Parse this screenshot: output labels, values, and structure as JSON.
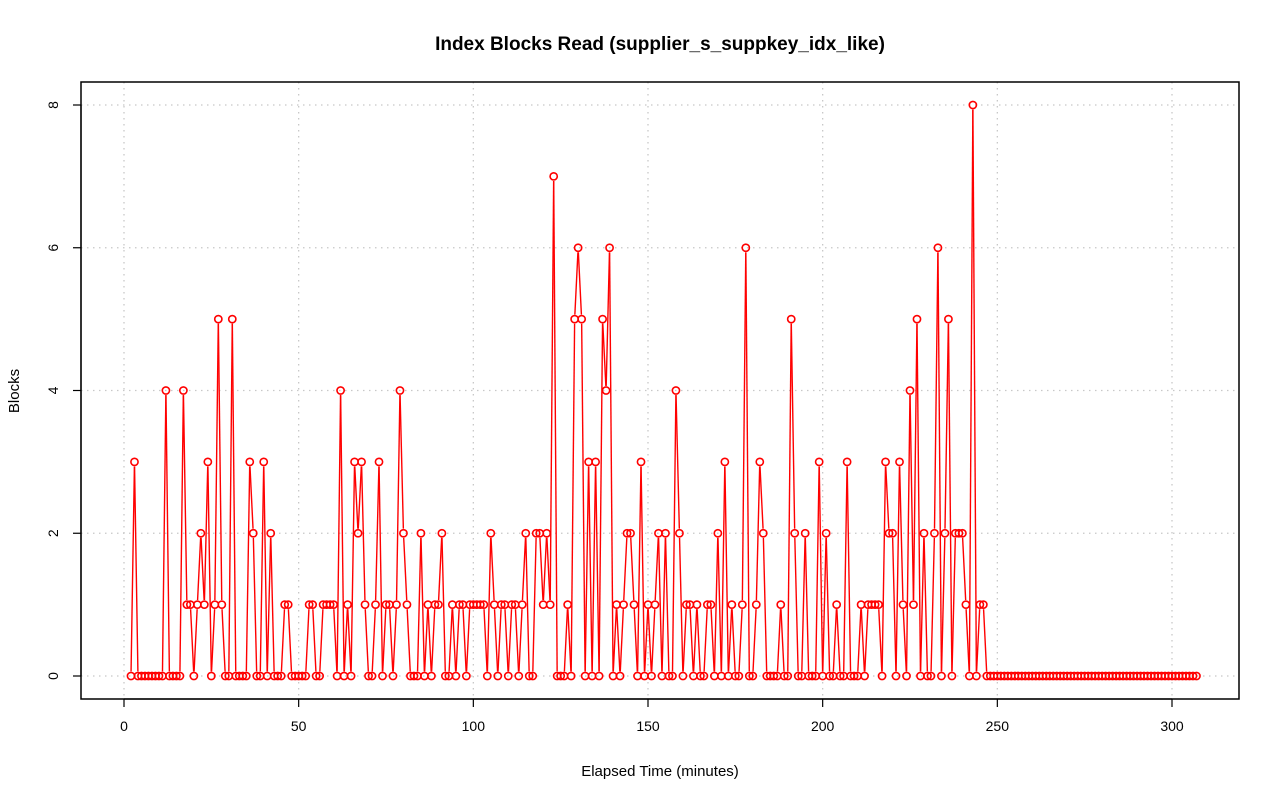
{
  "chart_data": {
    "type": "line",
    "title": "Index Blocks Read (supplier_s_suppkey_idx_like)",
    "xlabel": "Elapsed Time (minutes)",
    "ylabel": "Blocks",
    "xlim": [
      0,
      307
    ],
    "ylim": [
      0,
      8
    ],
    "xticks": [
      0,
      50,
      100,
      150,
      200,
      250,
      300
    ],
    "yticks": [
      0,
      2,
      4,
      6,
      8
    ],
    "grid": true,
    "series_color": "#ff0000",
    "series": [
      {
        "x_start": 2,
        "x_step": 1,
        "values": [
          0,
          3,
          0,
          0,
          0,
          0,
          0,
          0,
          0,
          0,
          4,
          0,
          0,
          0,
          0,
          4,
          1,
          1,
          0,
          1,
          2,
          1,
          3,
          0,
          1,
          5,
          1,
          0,
          0,
          5,
          0,
          0,
          0,
          0,
          3,
          2,
          0,
          0,
          3,
          0,
          2,
          0,
          0,
          0,
          1,
          1,
          0,
          0,
          0,
          0,
          0,
          1,
          1,
          0,
          0,
          1,
          1,
          1,
          1,
          0,
          4,
          0,
          1,
          0,
          3,
          2,
          3,
          1,
          0,
          0,
          1,
          3,
          0,
          1,
          1,
          0,
          1,
          4,
          2,
          1,
          0,
          0,
          0,
          2,
          0,
          1,
          0,
          1,
          1,
          2,
          0,
          0,
          1,
          0,
          1,
          1,
          0,
          1,
          1,
          1,
          1,
          1,
          0,
          2,
          1,
          0,
          1,
          1,
          0,
          1,
          1,
          0,
          1,
          2,
          0,
          0,
          2,
          2,
          1,
          2,
          1,
          7,
          0,
          0,
          0,
          1,
          0,
          5,
          6,
          5,
          0,
          3,
          0,
          3,
          0,
          5,
          4,
          6,
          0,
          1,
          0,
          1,
          2,
          2,
          1,
          0,
          3,
          0,
          1,
          0,
          1,
          2,
          0,
          2,
          0,
          0,
          4,
          2,
          0,
          1,
          1,
          0,
          1,
          0,
          0,
          1,
          1,
          0,
          2,
          0,
          3,
          0,
          1,
          0,
          0,
          1,
          6,
          0,
          0,
          1,
          3,
          2,
          0,
          0,
          0,
          0,
          1,
          0,
          0,
          5,
          2,
          0,
          0,
          2,
          0,
          0,
          0,
          3,
          0,
          2,
          0,
          0,
          1,
          0,
          0,
          3,
          0,
          0,
          0,
          1,
          0,
          1,
          1,
          1,
          1,
          0,
          3,
          2,
          2,
          0,
          3,
          1,
          0,
          4,
          1,
          5,
          0,
          2,
          0,
          0,
          2,
          6,
          0,
          2,
          5,
          0,
          2,
          2,
          2,
          1,
          0,
          8,
          0,
          1,
          1,
          0,
          0,
          0,
          0,
          0,
          0,
          0,
          0,
          0,
          0,
          0,
          0,
          0,
          0,
          0,
          0,
          0,
          0,
          0,
          0,
          0,
          0,
          0,
          0,
          0,
          0,
          0,
          0,
          0,
          0,
          0,
          0,
          0,
          0,
          0,
          0,
          0,
          0,
          0,
          0,
          0,
          0,
          0,
          0,
          0,
          0,
          0,
          0,
          0,
          0,
          0,
          0,
          0,
          0,
          0,
          0,
          0,
          0,
          0,
          0,
          0
        ]
      }
    ]
  }
}
